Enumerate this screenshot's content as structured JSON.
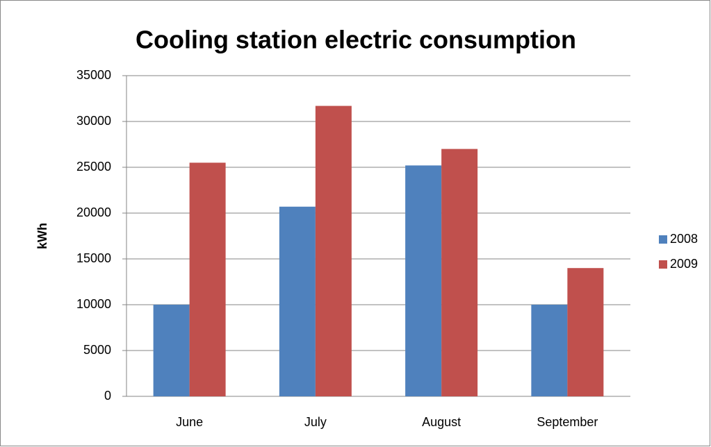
{
  "chart_data": {
    "type": "bar",
    "title": "Cooling station electric consumption",
    "y_label": "kWh",
    "categories": [
      "June",
      "July",
      "August",
      "September"
    ],
    "series": [
      {
        "name": "2008",
        "color": "#4f81bd",
        "values": [
          10000,
          20700,
          25200,
          10000
        ]
      },
      {
        "name": "2009",
        "color": "#c0504d",
        "values": [
          25500,
          31700,
          27000,
          14000
        ]
      }
    ],
    "ylim": [
      0,
      35000
    ],
    "yticks": [
      0,
      5000,
      10000,
      15000,
      20000,
      25000,
      30000,
      35000
    ],
    "grid": true,
    "legend": "right"
  }
}
